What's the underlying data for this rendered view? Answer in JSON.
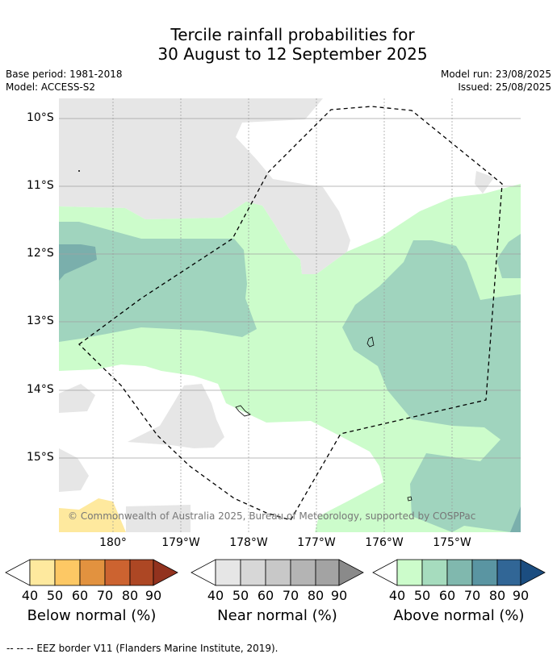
{
  "title_line1": "Tercile rainfall probabilities for",
  "title_line2": "30 August to 12 September 2025",
  "base_period": "Base period: 1981-2018",
  "model": "Model: ACCESS-S2",
  "model_run": "Model run: 23/08/2025",
  "issued": "Issued: 25/08/2025",
  "copyright": "© Commonwealth of Australia 2025, Bureau of Meteorology, supported by COSPPac",
  "lat_labels": [
    "10°S",
    "11°S",
    "12°S",
    "13°S",
    "14°S",
    "15°S"
  ],
  "lon_labels": [
    "180°",
    "179°W",
    "178°W",
    "177°W",
    "176°W",
    "175°W"
  ],
  "colorbars": [
    {
      "label": "Below normal (%)",
      "ticks": [
        "40",
        "50",
        "60",
        "70",
        "80",
        "90"
      ],
      "colors": [
        "#ffffff",
        "#fee99e",
        "#fdc864",
        "#e2923f",
        "#cc6330",
        "#ad4724",
        "#92321e"
      ]
    },
    {
      "label": "Near normal (%)",
      "ticks": [
        "40",
        "50",
        "60",
        "70",
        "80",
        "90"
      ],
      "colors": [
        "#ffffff",
        "#e6e6e6",
        "#d7d7d7",
        "#c8c8c8",
        "#b4b4b4",
        "#a3a3a3",
        "#8a8a8a"
      ]
    },
    {
      "label": "Above normal (%)",
      "ticks": [
        "40",
        "50",
        "60",
        "70",
        "80",
        "90"
      ],
      "colors": [
        "#ffffff",
        "#ccfccb",
        "#a6dcbe",
        "#80b8ae",
        "#5a95a2",
        "#316696",
        "#1b4d80"
      ]
    }
  ],
  "footnote": "--  --  -- EEZ border V11 (Flanders Marine Institute, 2019)."
}
